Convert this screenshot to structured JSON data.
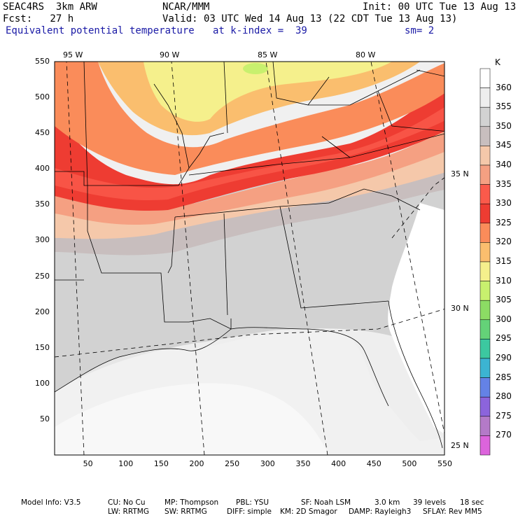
{
  "header": {
    "model": "SEAC4RS  3km ARW",
    "center": "NCAR/MMM",
    "init": "Init: 00 UTC Tue 13 Aug 13",
    "fcst": "Fcst:   27 h",
    "valid": "Valid: 03 UTC Wed 14 Aug 13 (22 CDT Tue 13 Aug 13)",
    "field": "Equivalent potential temperature",
    "level": "at k-index =  39",
    "smooth": "sm= 2"
  },
  "top_ticks": [
    "95 W",
    "90 W",
    "85 W",
    "80 W"
  ],
  "right_ticks": [
    "35 N",
    "30 N",
    "25 N"
  ],
  "x_ticks": [
    "50",
    "100",
    "150",
    "200",
    "250",
    "300",
    "350",
    "400",
    "450",
    "500",
    "550"
  ],
  "y_ticks": [
    "550",
    "500",
    "450",
    "400",
    "350",
    "300",
    "250",
    "200",
    "150",
    "100",
    "50"
  ],
  "colorbar": {
    "unit": "K",
    "levels": [
      "360",
      "355",
      "350",
      "345",
      "340",
      "335",
      "330",
      "325",
      "320",
      "315",
      "310",
      "305",
      "300",
      "295",
      "290",
      "285",
      "280",
      "275",
      "270"
    ],
    "colors": [
      "#ffffff",
      "#eeeeee",
      "#d2d2d2",
      "#c8bebe",
      "#f5c8aa",
      "#f5a082",
      "#fa5a4b",
      "#ee3c32",
      "#fa8c5a",
      "#fabe6e",
      "#f5f08c",
      "#c8f06e",
      "#8cdc64",
      "#64d278",
      "#3cc8a0",
      "#3cb4d2",
      "#6482e6",
      "#8c64dc",
      "#b47ac8",
      "#dc64dc"
    ]
  },
  "footer": {
    "line1": [
      "Model Info: V3.5",
      "CU: No Cu",
      "MP: Thompson",
      "PBL: YSU",
      "SF: Noah LSM",
      "3.0 km",
      "39 levels",
      "18 sec"
    ],
    "line2": [
      "LW: RRTMG",
      "SW: RRTMG",
      "DIFF: simple",
      "KM: 2D Smagor",
      "DAMP: Rayleigh3",
      "SFLAY: Rev MM5"
    ]
  }
}
